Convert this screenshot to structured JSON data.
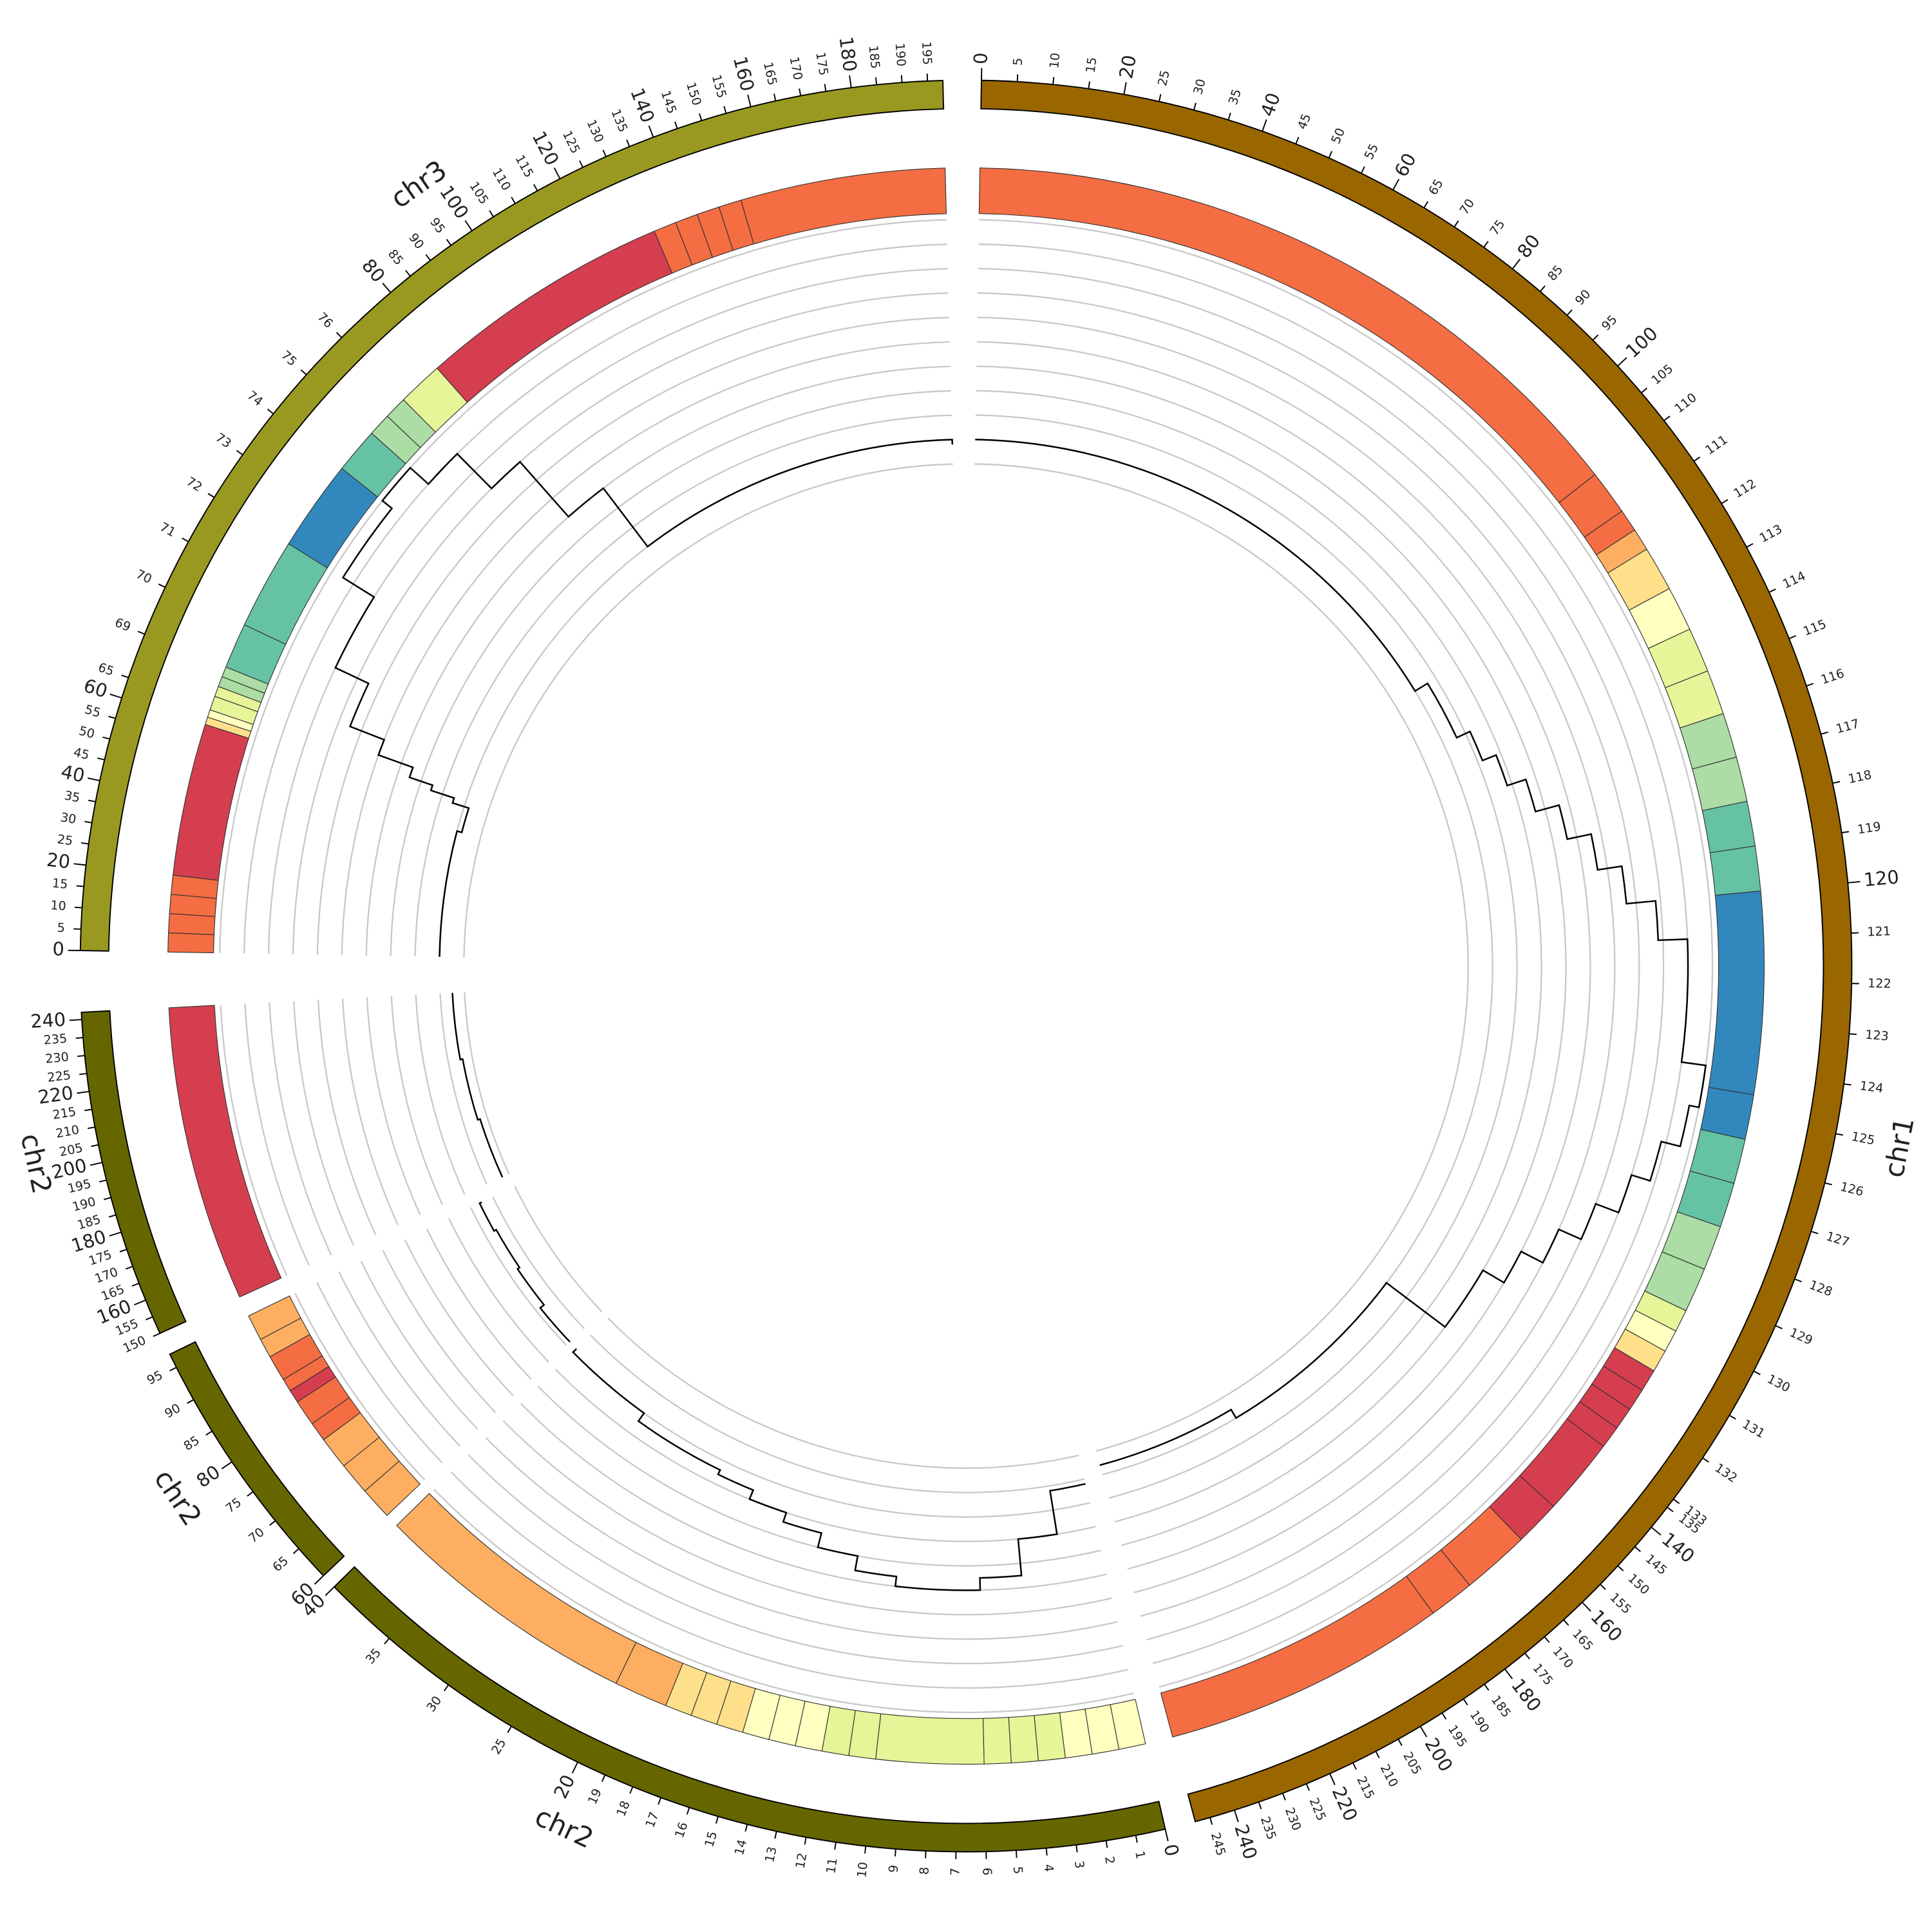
{
  "chart_data": {
    "type": "circos",
    "ylim": [
      0,
      10
    ],
    "yticks": [
      0,
      1,
      2,
      3,
      4,
      5,
      6,
      7,
      8,
      9,
      10
    ],
    "grid": true,
    "grid_color": "#c8c8c8",
    "line_color": "#000000",
    "heatmap_colors": [
      "#d53e4f",
      "#f46d43",
      "#fdae61",
      "#fee08b",
      "#ffffbf",
      "#e6f598",
      "#abdda4",
      "#66c2a5",
      "#3288bd"
    ],
    "segments": [
      {
        "name": "chr1",
        "color": "#996600",
        "regions": [
          [
            0,
            110
          ],
          [
            110,
            133
          ],
          [
            133,
            248
          ]
        ],
        "ticks": [
          0,
          5,
          10,
          15,
          20,
          25,
          30,
          35,
          40,
          45,
          50,
          55,
          60,
          65,
          70,
          75,
          80,
          85,
          90,
          95,
          100,
          105,
          110,
          111,
          112,
          113,
          114,
          115,
          116,
          117,
          118,
          119,
          120,
          121,
          122,
          123,
          124,
          125,
          126,
          127,
          128,
          129,
          130,
          131,
          132,
          133,
          135,
          140,
          145,
          150,
          155,
          160,
          165,
          170,
          175,
          180,
          185,
          190,
          195,
          200,
          205,
          210,
          215,
          220,
          225,
          230,
          235,
          240,
          245
        ],
        "heatmap": {
          "start": [
            0,
            110,
            111,
            111.5,
            112,
            113,
            114,
            115,
            116,
            117,
            118,
            119,
            120,
            124.5,
            125.5,
            126.5,
            127.5,
            128.5,
            129.5,
            130,
            130.5,
            131,
            131.5,
            132,
            132.5,
            133,
            150,
            160,
            175,
            185
          ],
          "end": [
            110,
            111,
            111.5,
            112,
            113,
            114,
            115,
            116,
            117,
            118,
            119,
            120,
            124.5,
            125.5,
            126.5,
            127.5,
            128.5,
            129.5,
            130,
            130.5,
            131,
            131.5,
            132,
            132.5,
            133,
            150,
            160,
            175,
            185,
            248
          ],
          "values": [
            2,
            2,
            2,
            3,
            4,
            5,
            6,
            6,
            7,
            7,
            8,
            8,
            9,
            9,
            8,
            8,
            7,
            7,
            6,
            5,
            4,
            1,
            1,
            1,
            1,
            1,
            1,
            2,
            2,
            2
          ]
        },
        "line": {
          "x": [
            0,
            105,
            112,
            114,
            115,
            116,
            117,
            118,
            119,
            120,
            121,
            124,
            125,
            126,
            127,
            128,
            129,
            130,
            131,
            133,
            200,
            248
          ],
          "values": [
            1,
            1,
            1.6,
            2.2,
            2.8,
            3.6,
            4.6,
            5.6,
            6.6,
            7.8,
            9,
            10,
            9.6,
            8.8,
            8,
            7,
            6,
            5,
            4,
            1,
            0.6,
            0.6
          ]
        }
      },
      {
        "name": "chr2",
        "color": "#666600",
        "regions": [
          [
            0,
            20
          ],
          [
            20,
            40
          ]
        ],
        "ticks": [
          0,
          1,
          2,
          3,
          4,
          5,
          6,
          7,
          8,
          9,
          10,
          11,
          12,
          13,
          14,
          15,
          16,
          17,
          18,
          19,
          20,
          25,
          30,
          35,
          40
        ],
        "heatmap": {
          "start": [
            0,
            1,
            2,
            3,
            4,
            5,
            6,
            10,
            11,
            12,
            13,
            14,
            15,
            16,
            17,
            18,
            20
          ],
          "end": [
            1,
            2,
            3,
            4,
            5,
            6,
            10,
            11,
            12,
            13,
            14,
            15,
            16,
            17,
            18,
            20,
            40
          ],
          "values": [
            5,
            5,
            5,
            6,
            6,
            6,
            6,
            6,
            6,
            5,
            5,
            5,
            4,
            4,
            4,
            3,
            3
          ]
        },
        "line": {
          "x": [
            0,
            2,
            4,
            6,
            8,
            10,
            12,
            14,
            16,
            18,
            20,
            30,
            40
          ],
          "values": [
            1.2,
            3,
            4.5,
            5,
            5,
            4.6,
            4,
            3.4,
            3,
            2.6,
            2.4,
            2,
            1.8
          ]
        }
      },
      {
        "name": "chr2",
        "color": "#666600",
        "regions": [
          [
            60,
            97
          ]
        ],
        "ticks": [
          60,
          65,
          70,
          75,
          80,
          85,
          90,
          95
        ],
        "heatmap": {
          "start": [
            60,
            65,
            70,
            75,
            78,
            82,
            84,
            86,
            90,
            93
          ],
          "end": [
            65,
            70,
            75,
            78,
            82,
            84,
            86,
            90,
            93,
            97
          ],
          "values": [
            3,
            3,
            3,
            2,
            2,
            1,
            2,
            2,
            3,
            3
          ]
        },
        "line": {
          "x": [
            60,
            70,
            80,
            90,
            97
          ],
          "values": [
            1.8,
            1.6,
            1.5,
            1.6,
            1.5
          ]
        }
      },
      {
        "name": "chr2",
        "color": "#666600",
        "regions": [
          [
            150,
            242
          ]
        ],
        "ticks": [
          150,
          155,
          160,
          165,
          170,
          175,
          180,
          185,
          190,
          195,
          200,
          205,
          210,
          215,
          220,
          225,
          230,
          235,
          240
        ],
        "heatmap": {
          "start": [
            150
          ],
          "end": [
            242
          ],
          "values": [
            1
          ]
        },
        "line": {
          "x": [
            150,
            180,
            210,
            242
          ],
          "values": [
            0.3,
            0.4,
            0.5,
            0.5
          ]
        }
      },
      {
        "name": "chr3",
        "color": "#999922",
        "regions": [
          [
            0,
            65
          ],
          [
            65,
            69
          ],
          [
            69,
            77
          ],
          [
            77,
            198
          ]
        ],
        "ticks": [
          0,
          5,
          10,
          15,
          20,
          25,
          30,
          35,
          40,
          45,
          50,
          55,
          60,
          65,
          69,
          70,
          71,
          72,
          73,
          74,
          75,
          76,
          80,
          85,
          90,
          95,
          100,
          105,
          110,
          115,
          120,
          125,
          130,
          135,
          140,
          145,
          150,
          155,
          160,
          165,
          170,
          175,
          180,
          185,
          190,
          195
        ],
        "heatmap": {
          "start": [
            0,
            5,
            10,
            15,
            20,
            60,
            62,
            64,
            66,
            67,
            68,
            69,
            70,
            72,
            74,
            75,
            75.5,
            76,
            77,
            133,
            138,
            143,
            148,
            153
          ],
          "end": [
            5,
            10,
            15,
            20,
            60,
            62,
            64,
            66,
            67,
            68,
            69,
            70,
            72,
            74,
            75,
            75.5,
            76,
            77,
            133,
            138,
            143,
            148,
            153,
            198
          ],
          "values": [
            2,
            2,
            2,
            2,
            1,
            4,
            5,
            6,
            6,
            7,
            7,
            8,
            8,
            9,
            8,
            7,
            7,
            6,
            1,
            2,
            2,
            2,
            2,
            2
          ]
        },
        "line": {
          "x": [
            0,
            50,
            60,
            62,
            64,
            66,
            68,
            70,
            72,
            74,
            75,
            76,
            77,
            90,
            198
          ],
          "values": [
            1,
            0.8,
            1.5,
            2.5,
            3.5,
            5,
            6.5,
            8,
            9.5,
            10,
            9,
            7,
            4,
            1,
            0.8
          ]
        }
      }
    ]
  }
}
